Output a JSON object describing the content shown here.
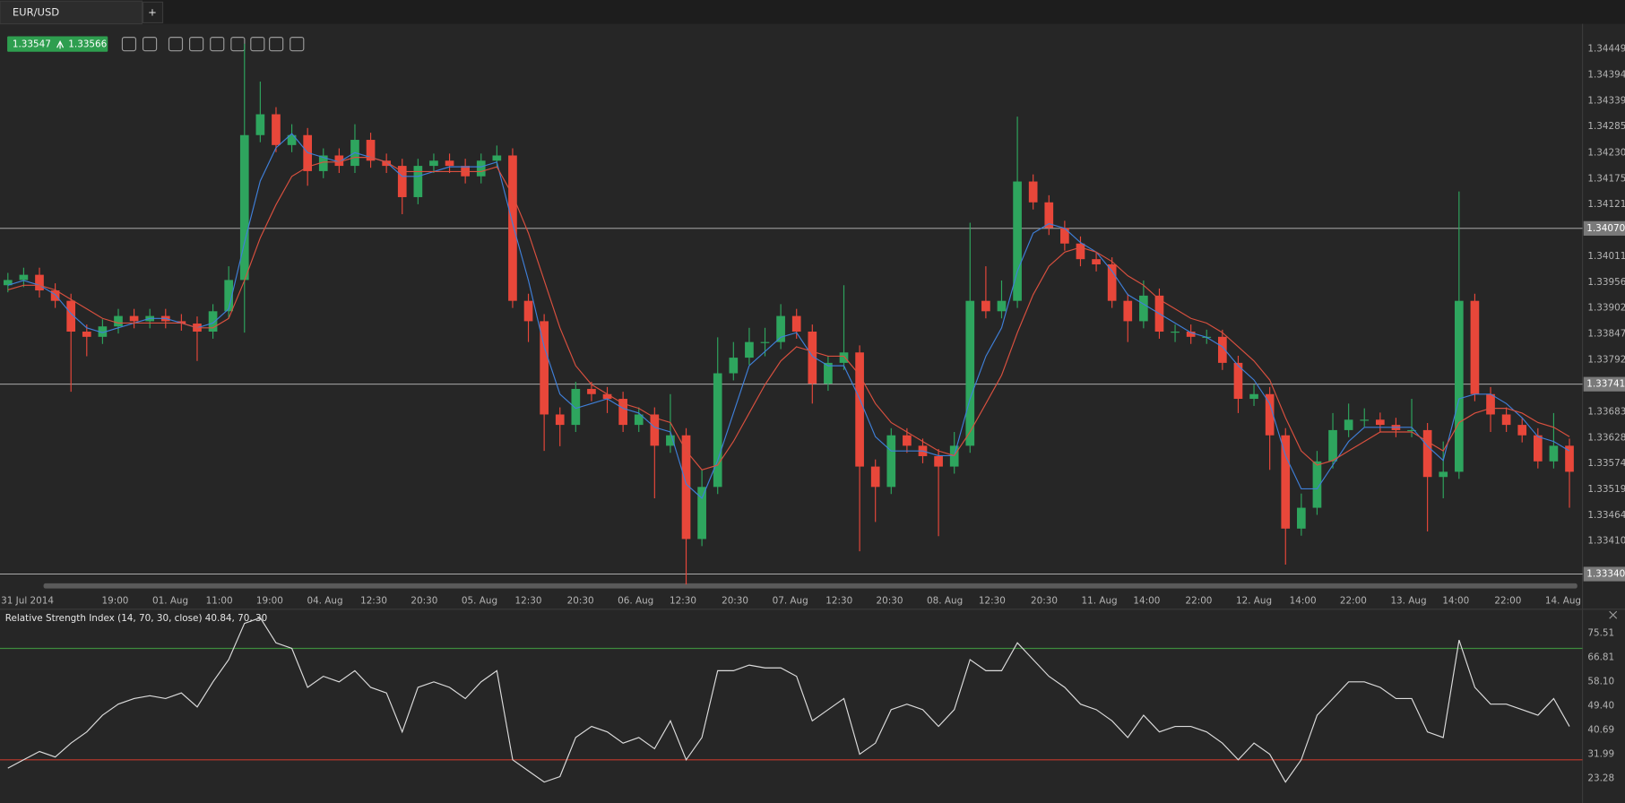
{
  "tabs": {
    "active": "EUR/USD",
    "add": "+"
  },
  "quote": {
    "bid": "1.33547",
    "ask": "1.33566"
  },
  "chart_data": [
    {
      "type": "candlestick",
      "xlim": [
        -0.5,
        99.5
      ],
      "xticks": [
        {
          "value": -0.5,
          "label": "31 Jul 2014"
        },
        {
          "value": 6.8,
          "label": "19:00"
        },
        {
          "value": 10.3,
          "label": "01. Aug"
        },
        {
          "value": 13.4,
          "label": "11:00"
        },
        {
          "value": 16.6,
          "label": "19:00"
        },
        {
          "value": 20.1,
          "label": "04. Aug"
        },
        {
          "value": 23.2,
          "label": "12:30"
        },
        {
          "value": 26.4,
          "label": "20:30"
        },
        {
          "value": 29.9,
          "label": "05. Aug"
        },
        {
          "value": 33.0,
          "label": "12:30"
        },
        {
          "value": 36.3,
          "label": "20:30"
        },
        {
          "value": 39.8,
          "label": "06. Aug"
        },
        {
          "value": 42.8,
          "label": "12:30"
        },
        {
          "value": 46.1,
          "label": "20:30"
        },
        {
          "value": 49.6,
          "label": "07. Aug"
        },
        {
          "value": 52.7,
          "label": "12:30"
        },
        {
          "value": 55.9,
          "label": "20:30"
        },
        {
          "value": 59.4,
          "label": "08. Aug"
        },
        {
          "value": 62.4,
          "label": "12:30"
        },
        {
          "value": 65.7,
          "label": "20:30"
        },
        {
          "value": 69.2,
          "label": "11. Aug"
        },
        {
          "value": 72.2,
          "label": "14:00"
        },
        {
          "value": 75.5,
          "label": "22:00"
        },
        {
          "value": 79.0,
          "label": "12. Aug"
        },
        {
          "value": 82.1,
          "label": "14:00"
        },
        {
          "value": 85.3,
          "label": "22:00"
        },
        {
          "value": 88.8,
          "label": "13. Aug"
        },
        {
          "value": 91.8,
          "label": "14:00"
        },
        {
          "value": 95.1,
          "label": "22:00"
        },
        {
          "value": 98.6,
          "label": "14. Aug"
        }
      ],
      "ylim": [
        1.33316,
        1.34502
      ],
      "yticks": [
        1.34449,
        1.34394,
        1.34339,
        1.34285,
        {
          "value": 1.3423,
          "label": "1.34230"
        },
        1.34175,
        1.34121,
        1.34011,
        1.33956,
        1.33902,
        1.33847,
        1.33792,
        1.33683,
        1.33628,
        1.33574,
        1.33519,
        1.33464,
        {
          "value": 1.3341,
          "label": "1.33410"
        }
      ],
      "hlines": [
        {
          "value": 1.3407,
          "label": "1.34070"
        },
        {
          "value": 1.33741,
          "label": "1.33741"
        },
        {
          "value": 1.3334,
          "label": "1.33340"
        }
      ],
      "up_color": "#2ea55e",
      "down_color": "#e8473a",
      "open": [
        1.3395,
        1.33961,
        1.33972,
        1.33939,
        1.33917,
        1.33852,
        1.33841,
        1.33863,
        1.33885,
        1.33874,
        1.33885,
        1.33874,
        1.33869,
        1.33852,
        1.33895,
        1.33961,
        1.34267,
        1.34311,
        1.34246,
        1.34267,
        1.34191,
        1.34224,
        1.34202,
        1.34257,
        1.34213,
        1.34202,
        1.34136,
        1.34202,
        1.34213,
        1.34202,
        1.3418,
        1.34213,
        1.34224,
        1.33917,
        1.33874,
        1.33677,
        1.33655,
        1.33731,
        1.3372,
        1.3371,
        1.33655,
        1.33677,
        1.33611,
        1.33633,
        1.33414,
        1.33524,
        1.33764,
        1.33797,
        1.3383,
        1.3383,
        1.33885,
        1.33852,
        1.33742,
        1.33786,
        1.33808,
        1.33567,
        1.33524,
        1.33633,
        1.33611,
        1.33589,
        1.33567,
        1.33611,
        1.33917,
        1.33895,
        1.33917,
        1.34169,
        1.34125,
        1.34071,
        1.34038,
        1.34005,
        1.33994,
        1.33917,
        1.33874,
        1.33928,
        1.33852,
        1.33852,
        1.33841,
        1.33841,
        1.33786,
        1.3371,
        1.3372,
        1.33633,
        1.33436,
        1.3348,
        1.33578,
        1.33644,
        1.33666,
        1.33666,
        1.33655,
        1.33644,
        1.33644,
        1.33545,
        1.33556,
        1.33917,
        1.3372,
        1.33677,
        1.33655,
        1.33633,
        1.33578,
        1.33611
      ],
      "high": [
        1.33976,
        1.33987,
        1.33987,
        1.33954,
        1.33932,
        1.33867,
        1.33878,
        1.339,
        1.339,
        1.339,
        1.339,
        1.33889,
        1.33884,
        1.3391,
        1.3399,
        1.3446,
        1.3438,
        1.34326,
        1.3429,
        1.34282,
        1.34239,
        1.34239,
        1.3429,
        1.34272,
        1.34228,
        1.34217,
        1.34217,
        1.34228,
        1.34228,
        1.34217,
        1.34228,
        1.34245,
        1.34239,
        1.33932,
        1.33889,
        1.33692,
        1.33746,
        1.33746,
        1.33735,
        1.33725,
        1.33692,
        1.33692,
        1.3372,
        1.33648,
        1.3356,
        1.3384,
        1.3383,
        1.3386,
        1.3386,
        1.3391,
        1.339,
        1.33867,
        1.33801,
        1.3395,
        1.33823,
        1.33582,
        1.33648,
        1.33648,
        1.33626,
        1.33604,
        1.3364,
        1.34082,
        1.3399,
        1.3396,
        1.34306,
        1.34184,
        1.3414,
        1.34086,
        1.34053,
        1.3402,
        1.34009,
        1.33932,
        1.3396,
        1.33943,
        1.33867,
        1.33867,
        1.33856,
        1.33856,
        1.33801,
        1.3374,
        1.33735,
        1.33648,
        1.3351,
        1.336,
        1.3368,
        1.337,
        1.3369,
        1.33681,
        1.3367,
        1.3371,
        1.33659,
        1.3362,
        1.34148,
        1.33932,
        1.33735,
        1.33692,
        1.3367,
        1.33648,
        1.3368,
        1.33626
      ],
      "low": [
        1.33935,
        1.33946,
        1.33924,
        1.33902,
        1.33725,
        1.338,
        1.33826,
        1.33848,
        1.33859,
        1.33859,
        1.33859,
        1.33854,
        1.3379,
        1.33837,
        1.3388,
        1.3385,
        1.34252,
        1.34231,
        1.34231,
        1.3416,
        1.34176,
        1.34187,
        1.34187,
        1.34198,
        1.34187,
        1.341,
        1.34121,
        1.34187,
        1.34187,
        1.34165,
        1.34165,
        1.34198,
        1.33902,
        1.3383,
        1.336,
        1.3361,
        1.3364,
        1.33705,
        1.3368,
        1.3364,
        1.3364,
        1.335,
        1.33596,
        1.33318,
        1.33399,
        1.33509,
        1.33749,
        1.33782,
        1.338,
        1.33815,
        1.33837,
        1.337,
        1.33727,
        1.33771,
        1.33388,
        1.3345,
        1.33509,
        1.33596,
        1.33574,
        1.3342,
        1.33552,
        1.33596,
        1.3388,
        1.3388,
        1.33902,
        1.3411,
        1.34056,
        1.34023,
        1.3399,
        1.33979,
        1.33902,
        1.3383,
        1.33859,
        1.33837,
        1.3383,
        1.33826,
        1.33826,
        1.33771,
        1.3368,
        1.33695,
        1.3356,
        1.3336,
        1.33421,
        1.33465,
        1.33563,
        1.33629,
        1.33651,
        1.3364,
        1.33629,
        1.33629,
        1.3343,
        1.335,
        1.33541,
        1.33705,
        1.3364,
        1.3364,
        1.33618,
        1.33563,
        1.33563,
        1.3348
      ],
      "close": [
        1.33961,
        1.33972,
        1.33939,
        1.33917,
        1.33852,
        1.33841,
        1.33863,
        1.33885,
        1.33874,
        1.33885,
        1.33874,
        1.33869,
        1.33852,
        1.33895,
        1.33961,
        1.34267,
        1.34311,
        1.34246,
        1.34267,
        1.34191,
        1.34224,
        1.34202,
        1.34257,
        1.34213,
        1.34202,
        1.34136,
        1.34202,
        1.34213,
        1.34202,
        1.3418,
        1.34213,
        1.34224,
        1.33917,
        1.33874,
        1.33677,
        1.33655,
        1.33731,
        1.3372,
        1.3371,
        1.33655,
        1.33677,
        1.33611,
        1.33633,
        1.33414,
        1.33524,
        1.33764,
        1.33797,
        1.3383,
        1.3383,
        1.33885,
        1.33852,
        1.33742,
        1.33786,
        1.33808,
        1.33567,
        1.33524,
        1.33633,
        1.33611,
        1.33589,
        1.33567,
        1.33611,
        1.33917,
        1.33895,
        1.33917,
        1.34169,
        1.34125,
        1.34071,
        1.34038,
        1.34005,
        1.33994,
        1.33917,
        1.33874,
        1.33928,
        1.33852,
        1.33852,
        1.33841,
        1.33841,
        1.33786,
        1.3371,
        1.3372,
        1.33633,
        1.33436,
        1.3348,
        1.33578,
        1.33644,
        1.33666,
        1.33666,
        1.33655,
        1.33644,
        1.33644,
        1.33545,
        1.33556,
        1.33917,
        1.3372,
        1.33677,
        1.33655,
        1.33633,
        1.33578,
        1.33611,
        1.33556
      ],
      "series": [
        {
          "color": "#3f7fd8",
          "values": [
            1.3395,
            1.3396,
            1.3395,
            1.3393,
            1.3389,
            1.3386,
            1.3385,
            1.3386,
            1.3387,
            1.3388,
            1.3388,
            1.3387,
            1.3386,
            1.3387,
            1.339,
            1.3404,
            1.3417,
            1.3424,
            1.3427,
            1.3423,
            1.3422,
            1.3421,
            1.3423,
            1.3422,
            1.3421,
            1.3418,
            1.3418,
            1.3419,
            1.342,
            1.342,
            1.342,
            1.3421,
            1.3408,
            1.3396,
            1.3382,
            1.3372,
            1.3369,
            1.337,
            1.3371,
            1.3369,
            1.3368,
            1.3365,
            1.3364,
            1.3353,
            1.335,
            1.3358,
            1.3368,
            1.3378,
            1.3381,
            1.3384,
            1.3385,
            1.338,
            1.3378,
            1.3378,
            1.3371,
            1.3363,
            1.336,
            1.336,
            1.336,
            1.3359,
            1.3359,
            1.3371,
            1.338,
            1.3386,
            1.3398,
            1.3406,
            1.3408,
            1.3407,
            1.3404,
            1.3402,
            1.3398,
            1.3393,
            1.3391,
            1.3389,
            1.3387,
            1.3385,
            1.3384,
            1.3382,
            1.3378,
            1.3375,
            1.337,
            1.3359,
            1.3352,
            1.3352,
            1.3357,
            1.3362,
            1.3365,
            1.3365,
            1.3365,
            1.3365,
            1.3361,
            1.3358,
            1.3371,
            1.3372,
            1.3372,
            1.337,
            1.3367,
            1.3363,
            1.3362,
            1.336
          ]
        },
        {
          "color": "#d9503f",
          "values": [
            1.3394,
            1.3395,
            1.3395,
            1.3394,
            1.3392,
            1.339,
            1.3388,
            1.3387,
            1.3387,
            1.3387,
            1.3387,
            1.3387,
            1.3386,
            1.3386,
            1.3388,
            1.3396,
            1.3405,
            1.3412,
            1.3418,
            1.342,
            1.3421,
            1.3421,
            1.3422,
            1.3422,
            1.3421,
            1.3419,
            1.3419,
            1.3419,
            1.3419,
            1.3419,
            1.3419,
            1.342,
            1.3414,
            1.3406,
            1.3396,
            1.3386,
            1.3378,
            1.3374,
            1.3372,
            1.337,
            1.3369,
            1.3367,
            1.3366,
            1.336,
            1.3356,
            1.3357,
            1.3362,
            1.3368,
            1.3374,
            1.3379,
            1.3382,
            1.3381,
            1.338,
            1.338,
            1.3376,
            1.337,
            1.3366,
            1.3364,
            1.3362,
            1.336,
            1.3359,
            1.3364,
            1.337,
            1.3376,
            1.3385,
            1.3393,
            1.3399,
            1.3402,
            1.3403,
            1.3402,
            1.34,
            1.3397,
            1.3395,
            1.3392,
            1.339,
            1.3388,
            1.3387,
            1.3385,
            1.3382,
            1.3379,
            1.3375,
            1.3367,
            1.336,
            1.3357,
            1.3358,
            1.336,
            1.3362,
            1.3364,
            1.3364,
            1.3364,
            1.3362,
            1.336,
            1.3366,
            1.3368,
            1.3369,
            1.3369,
            1.3368,
            1.3366,
            1.3365,
            1.3363
          ]
        }
      ]
    },
    {
      "type": "line",
      "title": "Relative Strength Index (14, 70, 30, close) 40.84, 70, 30",
      "xlim": [
        -0.5,
        99.5
      ],
      "ylim": [
        15.24,
        83.32
      ],
      "yticks": [
        75.51,
        66.81,
        {
          "value": 58.1,
          "label": "58.10"
        },
        {
          "value": 49.4,
          "label": "49.40"
        },
        40.69,
        31.99,
        23.28
      ],
      "hlines": [
        {
          "value": 70,
          "color": "#3d8b3d"
        },
        {
          "value": 30,
          "color": "#c0392b"
        }
      ],
      "series": [
        {
          "color": "#dcdcdc",
          "values": [
            27,
            30,
            33,
            31,
            36,
            40,
            46,
            50,
            52,
            53,
            52,
            54,
            49,
            58,
            66,
            79,
            81,
            72,
            70,
            56,
            60,
            58,
            62,
            56,
            54,
            40,
            56,
            58,
            56,
            52,
            58,
            62,
            30,
            26,
            22,
            24,
            38,
            42,
            40,
            36,
            38,
            34,
            44,
            30,
            38,
            62,
            62,
            64,
            63,
            63,
            60,
            44,
            48,
            52,
            32,
            36,
            48,
            50,
            48,
            42,
            48,
            66,
            62,
            62,
            72,
            66,
            60,
            56,
            50,
            48,
            44,
            38,
            46,
            40,
            42,
            42,
            40,
            36,
            30,
            36,
            32,
            22,
            30,
            46,
            52,
            58,
            58,
            56,
            52,
            52,
            40,
            38,
            73,
            56,
            50,
            50,
            48,
            46,
            52,
            42
          ]
        }
      ]
    }
  ]
}
